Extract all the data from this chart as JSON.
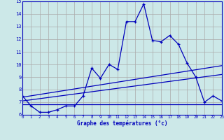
{
  "xlabel": "Graphe des températures (°c)",
  "ylim": [
    6,
    15
  ],
  "xlim": [
    0,
    23
  ],
  "xticks": [
    0,
    1,
    2,
    3,
    4,
    5,
    6,
    7,
    8,
    9,
    10,
    11,
    12,
    13,
    14,
    15,
    16,
    17,
    18,
    19,
    20,
    21,
    22,
    23
  ],
  "yticks": [
    6,
    7,
    8,
    9,
    10,
    11,
    12,
    13,
    14,
    15
  ],
  "bg_color": "#cce8e8",
  "line_color": "#0000bb",
  "grid_color": "#aaaaaa",
  "main_x": [
    0,
    1,
    2,
    3,
    4,
    5,
    6,
    7,
    8,
    9,
    10,
    11,
    12,
    13,
    14,
    15,
    16,
    17,
    18,
    19,
    20,
    21,
    22,
    23
  ],
  "main_y": [
    7.5,
    6.7,
    6.2,
    6.2,
    6.4,
    6.7,
    6.7,
    7.5,
    9.7,
    8.9,
    10.0,
    9.6,
    13.4,
    13.4,
    14.8,
    11.9,
    11.8,
    12.3,
    11.6,
    10.1,
    9.0,
    7.0,
    7.5,
    7.1
  ],
  "line1_x": [
    0,
    23
  ],
  "line1_y": [
    6.85,
    6.85
  ],
  "line2_x": [
    0,
    23
  ],
  "line2_y": [
    7.1,
    9.2
  ],
  "line3_x": [
    0,
    23
  ],
  "line3_y": [
    7.4,
    9.9
  ]
}
